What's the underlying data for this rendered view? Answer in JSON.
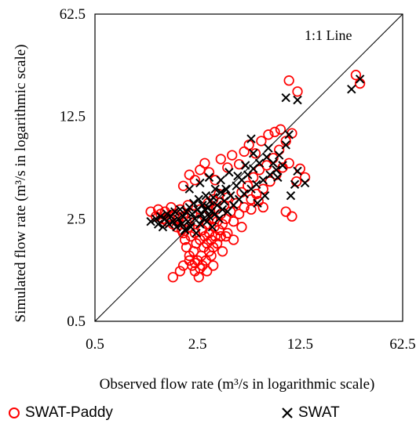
{
  "chart_data": {
    "type": "scatter",
    "x_scale": "log",
    "y_scale": "log",
    "xlabel": "Observed flow rate (m³/s in logarithmic scale)",
    "ylabel": "Simulated flow rate (m³/s in logarithmic scale)",
    "xlim": [
      0.5,
      62.5
    ],
    "ylim": [
      0.5,
      62.5
    ],
    "xticks": [
      "0.5",
      "2.5",
      "12.5",
      "62.5"
    ],
    "yticks": [
      "0.5",
      "2.5",
      "12.5",
      "62.5"
    ],
    "tick_values": [
      0.5,
      2.5,
      12.5,
      62.5
    ],
    "grid": false,
    "legend_position": "bottom",
    "annotation": "1:1 Line",
    "reference_line": {
      "label": "1:1 Line",
      "x": [
        0.5,
        62.5
      ],
      "y": [
        0.5,
        62.5
      ]
    },
    "series": [
      {
        "name": "SWAT-Paddy",
        "marker": "circle-open",
        "color": "#ff0000",
        "points": [
          [
            1.2,
            2.8
          ],
          [
            1.3,
            2.6
          ],
          [
            1.35,
            2.9
          ],
          [
            1.4,
            2.7
          ],
          [
            1.45,
            2.5
          ],
          [
            1.5,
            2.8
          ],
          [
            1.55,
            2.4
          ],
          [
            1.6,
            2.6
          ],
          [
            1.65,
            3.0
          ],
          [
            1.7,
            2.3
          ],
          [
            1.75,
            2.7
          ],
          [
            1.8,
            2.2
          ],
          [
            1.85,
            2.5
          ],
          [
            1.9,
            2.9
          ],
          [
            1.95,
            2.1
          ],
          [
            2.0,
            2.6
          ],
          [
            2.0,
            2.0
          ],
          [
            2.05,
            1.8
          ],
          [
            2.1,
            2.4
          ],
          [
            2.1,
            1.6
          ],
          [
            2.15,
            3.1
          ],
          [
            2.2,
            1.4
          ],
          [
            2.2,
            2.2
          ],
          [
            2.25,
            1.9
          ],
          [
            2.3,
            1.2
          ],
          [
            2.3,
            2.7
          ],
          [
            2.35,
            1.5
          ],
          [
            2.4,
            1.1
          ],
          [
            2.4,
            2.0
          ],
          [
            2.45,
            1.7
          ],
          [
            2.5,
            1.3
          ],
          [
            2.5,
            2.4
          ],
          [
            2.55,
            1.0
          ],
          [
            2.6,
            1.8
          ],
          [
            2.6,
            2.9
          ],
          [
            2.65,
            1.4
          ],
          [
            2.7,
            2.1
          ],
          [
            2.7,
            1.2
          ],
          [
            2.75,
            1.6
          ],
          [
            2.8,
            2.6
          ],
          [
            2.8,
            1.9
          ],
          [
            2.85,
            1.3
          ],
          [
            2.9,
            2.3
          ],
          [
            2.9,
            1.7
          ],
          [
            2.95,
            3.2
          ],
          [
            3.0,
            1.5
          ],
          [
            3.0,
            2.0
          ],
          [
            3.05,
            2.8
          ],
          [
            3.1,
            1.8
          ],
          [
            3.1,
            1.4
          ],
          [
            3.15,
            2.5
          ],
          [
            3.2,
            1.6
          ],
          [
            3.2,
            3.4
          ],
          [
            3.25,
            2.2
          ],
          [
            3.3,
            1.9
          ],
          [
            3.35,
            2.9
          ],
          [
            3.4,
            1.7
          ],
          [
            3.4,
            2.4
          ],
          [
            3.5,
            2.1
          ],
          [
            3.5,
            3.7
          ],
          [
            3.6,
            1.9
          ],
          [
            3.6,
            2.7
          ],
          [
            3.7,
            2.3
          ],
          [
            3.8,
            3.1
          ],
          [
            3.9,
            2.5
          ],
          [
            4.0,
            2.0
          ],
          [
            4.0,
            3.5
          ],
          [
            4.2,
            2.8
          ],
          [
            4.4,
            2.4
          ],
          [
            4.6,
            3.2
          ],
          [
            4.8,
            2.7
          ],
          [
            5.0,
            3.8
          ],
          [
            5.2,
            3.0
          ],
          [
            5.5,
            4.2
          ],
          [
            5.8,
            3.4
          ],
          [
            6.0,
            4.8
          ],
          [
            6.3,
            3.7
          ],
          [
            6.6,
            5.4
          ],
          [
            7.0,
            4.0
          ],
          [
            7.4,
            5.8
          ],
          [
            7.8,
            4.5
          ],
          [
            8.2,
            6.5
          ],
          [
            8.6,
            5.0
          ],
          [
            9.0,
            7.4
          ],
          [
            9.5,
            5.6
          ],
          [
            10.0,
            8.5
          ],
          [
            10.5,
            6.0
          ],
          [
            11.0,
            9.6
          ],
          [
            11.8,
            4.5
          ],
          [
            12.5,
            5.5
          ],
          [
            13.5,
            4.8
          ],
          [
            2.0,
            4.2
          ],
          [
            2.2,
            5.0
          ],
          [
            2.4,
            4.6
          ],
          [
            2.6,
            5.4
          ],
          [
            2.8,
            6.0
          ],
          [
            3.0,
            5.2
          ],
          [
            3.3,
            4.6
          ],
          [
            3.6,
            6.4
          ],
          [
            4.0,
            5.6
          ],
          [
            4.3,
            6.8
          ],
          [
            4.8,
            5.9
          ],
          [
            5.2,
            7.2
          ],
          [
            5.6,
            8.0
          ],
          [
            6.2,
            7.0
          ],
          [
            6.8,
            8.5
          ],
          [
            7.6,
            9.4
          ],
          [
            8.4,
            9.8
          ],
          [
            9.2,
            10.2
          ],
          [
            10.5,
            22.0
          ],
          [
            12.0,
            18.5
          ],
          [
            30.0,
            24.0
          ],
          [
            32.0,
            21.0
          ],
          [
            7.0,
            3.0
          ],
          [
            6.5,
            3.3
          ],
          [
            5.8,
            2.9
          ],
          [
            10.0,
            2.8
          ],
          [
            11.0,
            2.6
          ],
          [
            3.9,
            1.9
          ],
          [
            4.4,
            1.8
          ],
          [
            5.0,
            2.2
          ],
          [
            3.7,
            1.5
          ],
          [
            1.7,
            1.0
          ],
          [
            1.9,
            1.1
          ],
          [
            2.0,
            1.2
          ],
          [
            2.2,
            1.3
          ],
          [
            2.4,
            1.25
          ],
          [
            2.6,
            1.15
          ],
          [
            2.9,
            1.1
          ],
          [
            3.2,
            1.2
          ]
        ]
      },
      {
        "name": "SWAT",
        "marker": "x",
        "color": "#000000",
        "points": [
          [
            1.2,
            2.4
          ],
          [
            1.3,
            2.5
          ],
          [
            1.35,
            2.3
          ],
          [
            1.4,
            2.6
          ],
          [
            1.45,
            2.2
          ],
          [
            1.5,
            2.5
          ],
          [
            1.55,
            2.7
          ],
          [
            1.6,
            2.3
          ],
          [
            1.65,
            2.6
          ],
          [
            1.7,
            2.4
          ],
          [
            1.75,
            2.8
          ],
          [
            1.8,
            2.2
          ],
          [
            1.85,
            2.5
          ],
          [
            1.9,
            2.9
          ],
          [
            1.95,
            2.3
          ],
          [
            2.0,
            2.6
          ],
          [
            2.05,
            2.1
          ],
          [
            2.1,
            2.8
          ],
          [
            2.15,
            2.4
          ],
          [
            2.2,
            3.0
          ],
          [
            2.25,
            2.2
          ],
          [
            2.3,
            2.7
          ],
          [
            2.35,
            3.2
          ],
          [
            2.4,
            2.5
          ],
          [
            2.45,
            2.0
          ],
          [
            2.5,
            2.9
          ],
          [
            2.55,
            3.4
          ],
          [
            2.6,
            2.3
          ],
          [
            2.65,
            2.7
          ],
          [
            2.7,
            3.1
          ],
          [
            2.75,
            2.5
          ],
          [
            2.8,
            2.9
          ],
          [
            2.85,
            3.6
          ],
          [
            2.9,
            2.4
          ],
          [
            2.95,
            3.0
          ],
          [
            3.0,
            2.6
          ],
          [
            3.05,
            3.3
          ],
          [
            3.1,
            2.8
          ],
          [
            3.15,
            2.2
          ],
          [
            3.2,
            3.5
          ],
          [
            3.3,
            2.7
          ],
          [
            3.4,
            3.1
          ],
          [
            3.5,
            2.5
          ],
          [
            3.6,
            3.8
          ],
          [
            3.7,
            2.9
          ],
          [
            3.8,
            3.3
          ],
          [
            3.9,
            4.0
          ],
          [
            4.0,
            2.8
          ],
          [
            4.2,
            3.6
          ],
          [
            4.4,
            3.1
          ],
          [
            4.6,
            4.2
          ],
          [
            4.8,
            3.4
          ],
          [
            5.0,
            4.6
          ],
          [
            5.2,
            3.7
          ],
          [
            5.5,
            5.0
          ],
          [
            5.8,
            4.0
          ],
          [
            6.0,
            5.5
          ],
          [
            6.3,
            4.3
          ],
          [
            6.6,
            6.0
          ],
          [
            7.0,
            4.6
          ],
          [
            7.4,
            6.6
          ],
          [
            7.8,
            5.0
          ],
          [
            8.2,
            6.0
          ],
          [
            8.6,
            5.4
          ],
          [
            9.0,
            6.8
          ],
          [
            9.5,
            5.8
          ],
          [
            10.0,
            8.0
          ],
          [
            10.5,
            9.4
          ],
          [
            10.0,
            16.8
          ],
          [
            12.0,
            16.2
          ],
          [
            28.0,
            19.2
          ],
          [
            32.0,
            22.5
          ],
          [
            11.5,
            4.3
          ],
          [
            13.5,
            4.4
          ],
          [
            12.0,
            5.3
          ],
          [
            5.8,
            8.8
          ],
          [
            6.0,
            7.0
          ],
          [
            7.6,
            7.6
          ],
          [
            3.6,
            4.6
          ],
          [
            4.1,
            5.2
          ],
          [
            2.2,
            4.0
          ],
          [
            2.6,
            4.4
          ],
          [
            3.0,
            4.8
          ],
          [
            3.3,
            4.0
          ],
          [
            4.7,
            4.9
          ],
          [
            5.3,
            5.8
          ],
          [
            8.8,
            4.8
          ],
          [
            10.8,
            3.6
          ],
          [
            6.4,
            3.2
          ],
          [
            7.2,
            3.6
          ]
        ]
      }
    ]
  }
}
